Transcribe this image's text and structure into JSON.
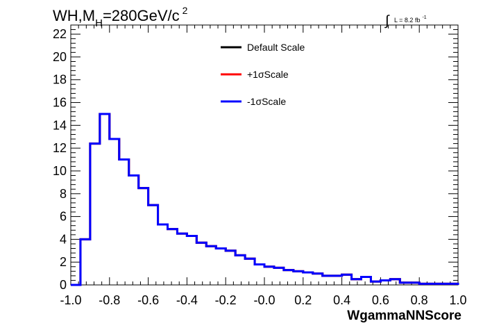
{
  "chart_data": {
    "type": "line",
    "title_main": "WH,M",
    "title_sub": "H",
    "title_rest": "=280GeV/c",
    "title_sup": "2",
    "lumi_text": "L = 8.2 fb",
    "lumi_sup": "-1",
    "xlabel": "WgammaNNScore",
    "ylabel": "",
    "xlim": [
      -1.0,
      1.0
    ],
    "ylim": [
      0,
      22.8
    ],
    "x_ticks": [
      "-1.0",
      "-0.8",
      "-0.6",
      "-0.4",
      "-0.2",
      "-0.0",
      "0.2",
      "0.4",
      "0.6",
      "0.8",
      "1.0"
    ],
    "y_ticks": [
      "0",
      "2",
      "4",
      "6",
      "8",
      "10",
      "12",
      "14",
      "16",
      "18",
      "20",
      "22"
    ],
    "bin_edges": [
      -1.0,
      -0.95,
      -0.9,
      -0.85,
      -0.8,
      -0.75,
      -0.7,
      -0.65,
      -0.6,
      -0.55,
      -0.5,
      -0.45,
      -0.4,
      -0.35,
      -0.3,
      -0.25,
      -0.2,
      -0.15,
      -0.1,
      -0.05,
      0.0,
      0.05,
      0.1,
      0.15,
      0.2,
      0.25,
      0.3,
      0.35,
      0.4,
      0.45,
      0.5,
      0.55,
      0.6,
      0.65,
      0.7,
      0.75,
      0.8,
      0.85,
      0.9,
      0.95,
      1.0
    ],
    "series": [
      {
        "name": "Default Scale",
        "color": "#000000",
        "values": [
          0,
          4.0,
          12.4,
          15.0,
          12.8,
          11.0,
          9.6,
          8.5,
          7.0,
          5.3,
          4.9,
          4.5,
          4.3,
          3.7,
          3.4,
          3.2,
          3.0,
          2.6,
          2.3,
          1.8,
          1.6,
          1.5,
          1.3,
          1.2,
          1.1,
          1.0,
          0.8,
          0.8,
          0.9,
          0.5,
          0.7,
          0.3,
          0.4,
          0.5,
          0.2,
          0.2,
          0.1,
          0.1,
          0.1,
          0.1
        ]
      },
      {
        "name": "+1σScale",
        "color": "#ff0000",
        "values": [
          0,
          4.0,
          12.4,
          15.0,
          12.8,
          11.0,
          9.6,
          8.5,
          7.0,
          5.3,
          4.9,
          4.5,
          4.3,
          3.7,
          3.4,
          3.2,
          3.0,
          2.6,
          2.3,
          1.8,
          1.6,
          1.5,
          1.3,
          1.2,
          1.1,
          1.0,
          0.8,
          0.8,
          0.9,
          0.5,
          0.7,
          0.3,
          0.4,
          0.5,
          0.2,
          0.2,
          0.1,
          0.1,
          0.1,
          0.1
        ]
      },
      {
        "name": "-1σScale",
        "color": "#0000ff",
        "values": [
          0,
          4.0,
          12.4,
          15.0,
          12.8,
          11.0,
          9.6,
          8.5,
          7.0,
          5.3,
          4.9,
          4.5,
          4.3,
          3.7,
          3.4,
          3.2,
          3.0,
          2.6,
          2.3,
          1.8,
          1.6,
          1.5,
          1.3,
          1.2,
          1.1,
          1.0,
          0.8,
          0.8,
          0.9,
          0.5,
          0.7,
          0.3,
          0.4,
          0.5,
          0.2,
          0.2,
          0.1,
          0.1,
          0.1,
          0.1
        ]
      }
    ],
    "grid": false,
    "legend_position": "top-center"
  }
}
